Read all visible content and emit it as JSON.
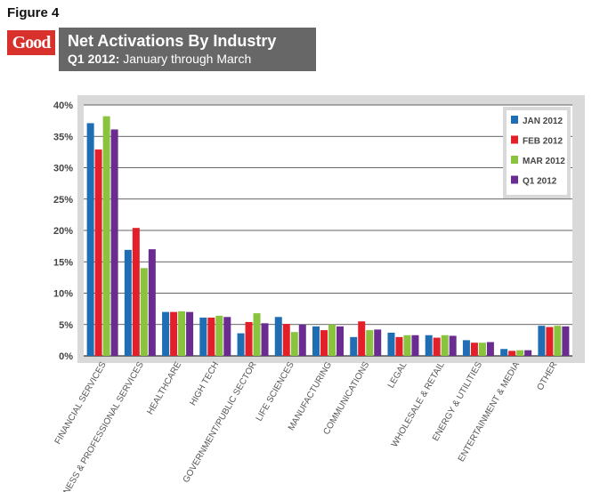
{
  "figure_label": "Figure 4",
  "logo_text": "Good",
  "header": {
    "title": "Net Activations By Industry",
    "period_bold": "Q1 2012:",
    "period_rest": " January through March"
  },
  "colors": {
    "panel": "#d9d9d9",
    "grid": "#333333",
    "banner": "#676767",
    "logo": "#d8312b"
  },
  "chart_data": {
    "type": "bar",
    "title": "Net Activations By Industry",
    "subtitle": "Q1 2012: January through March",
    "xlabel": "",
    "ylabel": "",
    "ylim": [
      0,
      40
    ],
    "yticks": [
      "0%",
      "5%",
      "10%",
      "15%",
      "20%",
      "25%",
      "30%",
      "35%",
      "40%"
    ],
    "grid": true,
    "legend_position": "top-right",
    "categories": [
      "FINANCIAL SERVICES",
      "BUSINESS & PROFESSIONAL SERVICES",
      "HEALTHCARE",
      "HIGH TECH",
      "GOVERNMENT/PUBLIC SECTOR",
      "LIFE SCIENCES",
      "MANUFACTURING",
      "COMMUNICATIONS",
      "LEGAL",
      "WHOLESALE & RETAIL",
      "ENERGY & UTILITIES",
      "ENTERTAINMENT & MEDIA",
      "OTHER"
    ],
    "series": [
      {
        "name": "JAN 2012",
        "color": "#1f6eb4",
        "values": [
          37.1,
          16.9,
          7.0,
          6.1,
          3.6,
          6.2,
          4.7,
          3.0,
          3.7,
          3.3,
          2.5,
          1.1,
          4.8
        ]
      },
      {
        "name": "FEB 2012",
        "color": "#e3202a",
        "values": [
          32.9,
          20.4,
          7.0,
          6.1,
          5.4,
          5.1,
          4.1,
          5.5,
          3.0,
          2.9,
          2.1,
          0.8,
          4.6
        ]
      },
      {
        "name": "MAR 2012",
        "color": "#8ac43f",
        "values": [
          38.2,
          14.0,
          7.1,
          6.4,
          6.8,
          3.8,
          5.0,
          4.1,
          3.3,
          3.3,
          2.1,
          0.9,
          4.8
        ]
      },
      {
        "name": "Q1 2012",
        "color": "#6a2c91",
        "values": [
          36.1,
          17.0,
          7.0,
          6.2,
          5.2,
          5.0,
          4.7,
          4.2,
          3.3,
          3.2,
          2.2,
          0.9,
          4.7
        ]
      }
    ]
  }
}
